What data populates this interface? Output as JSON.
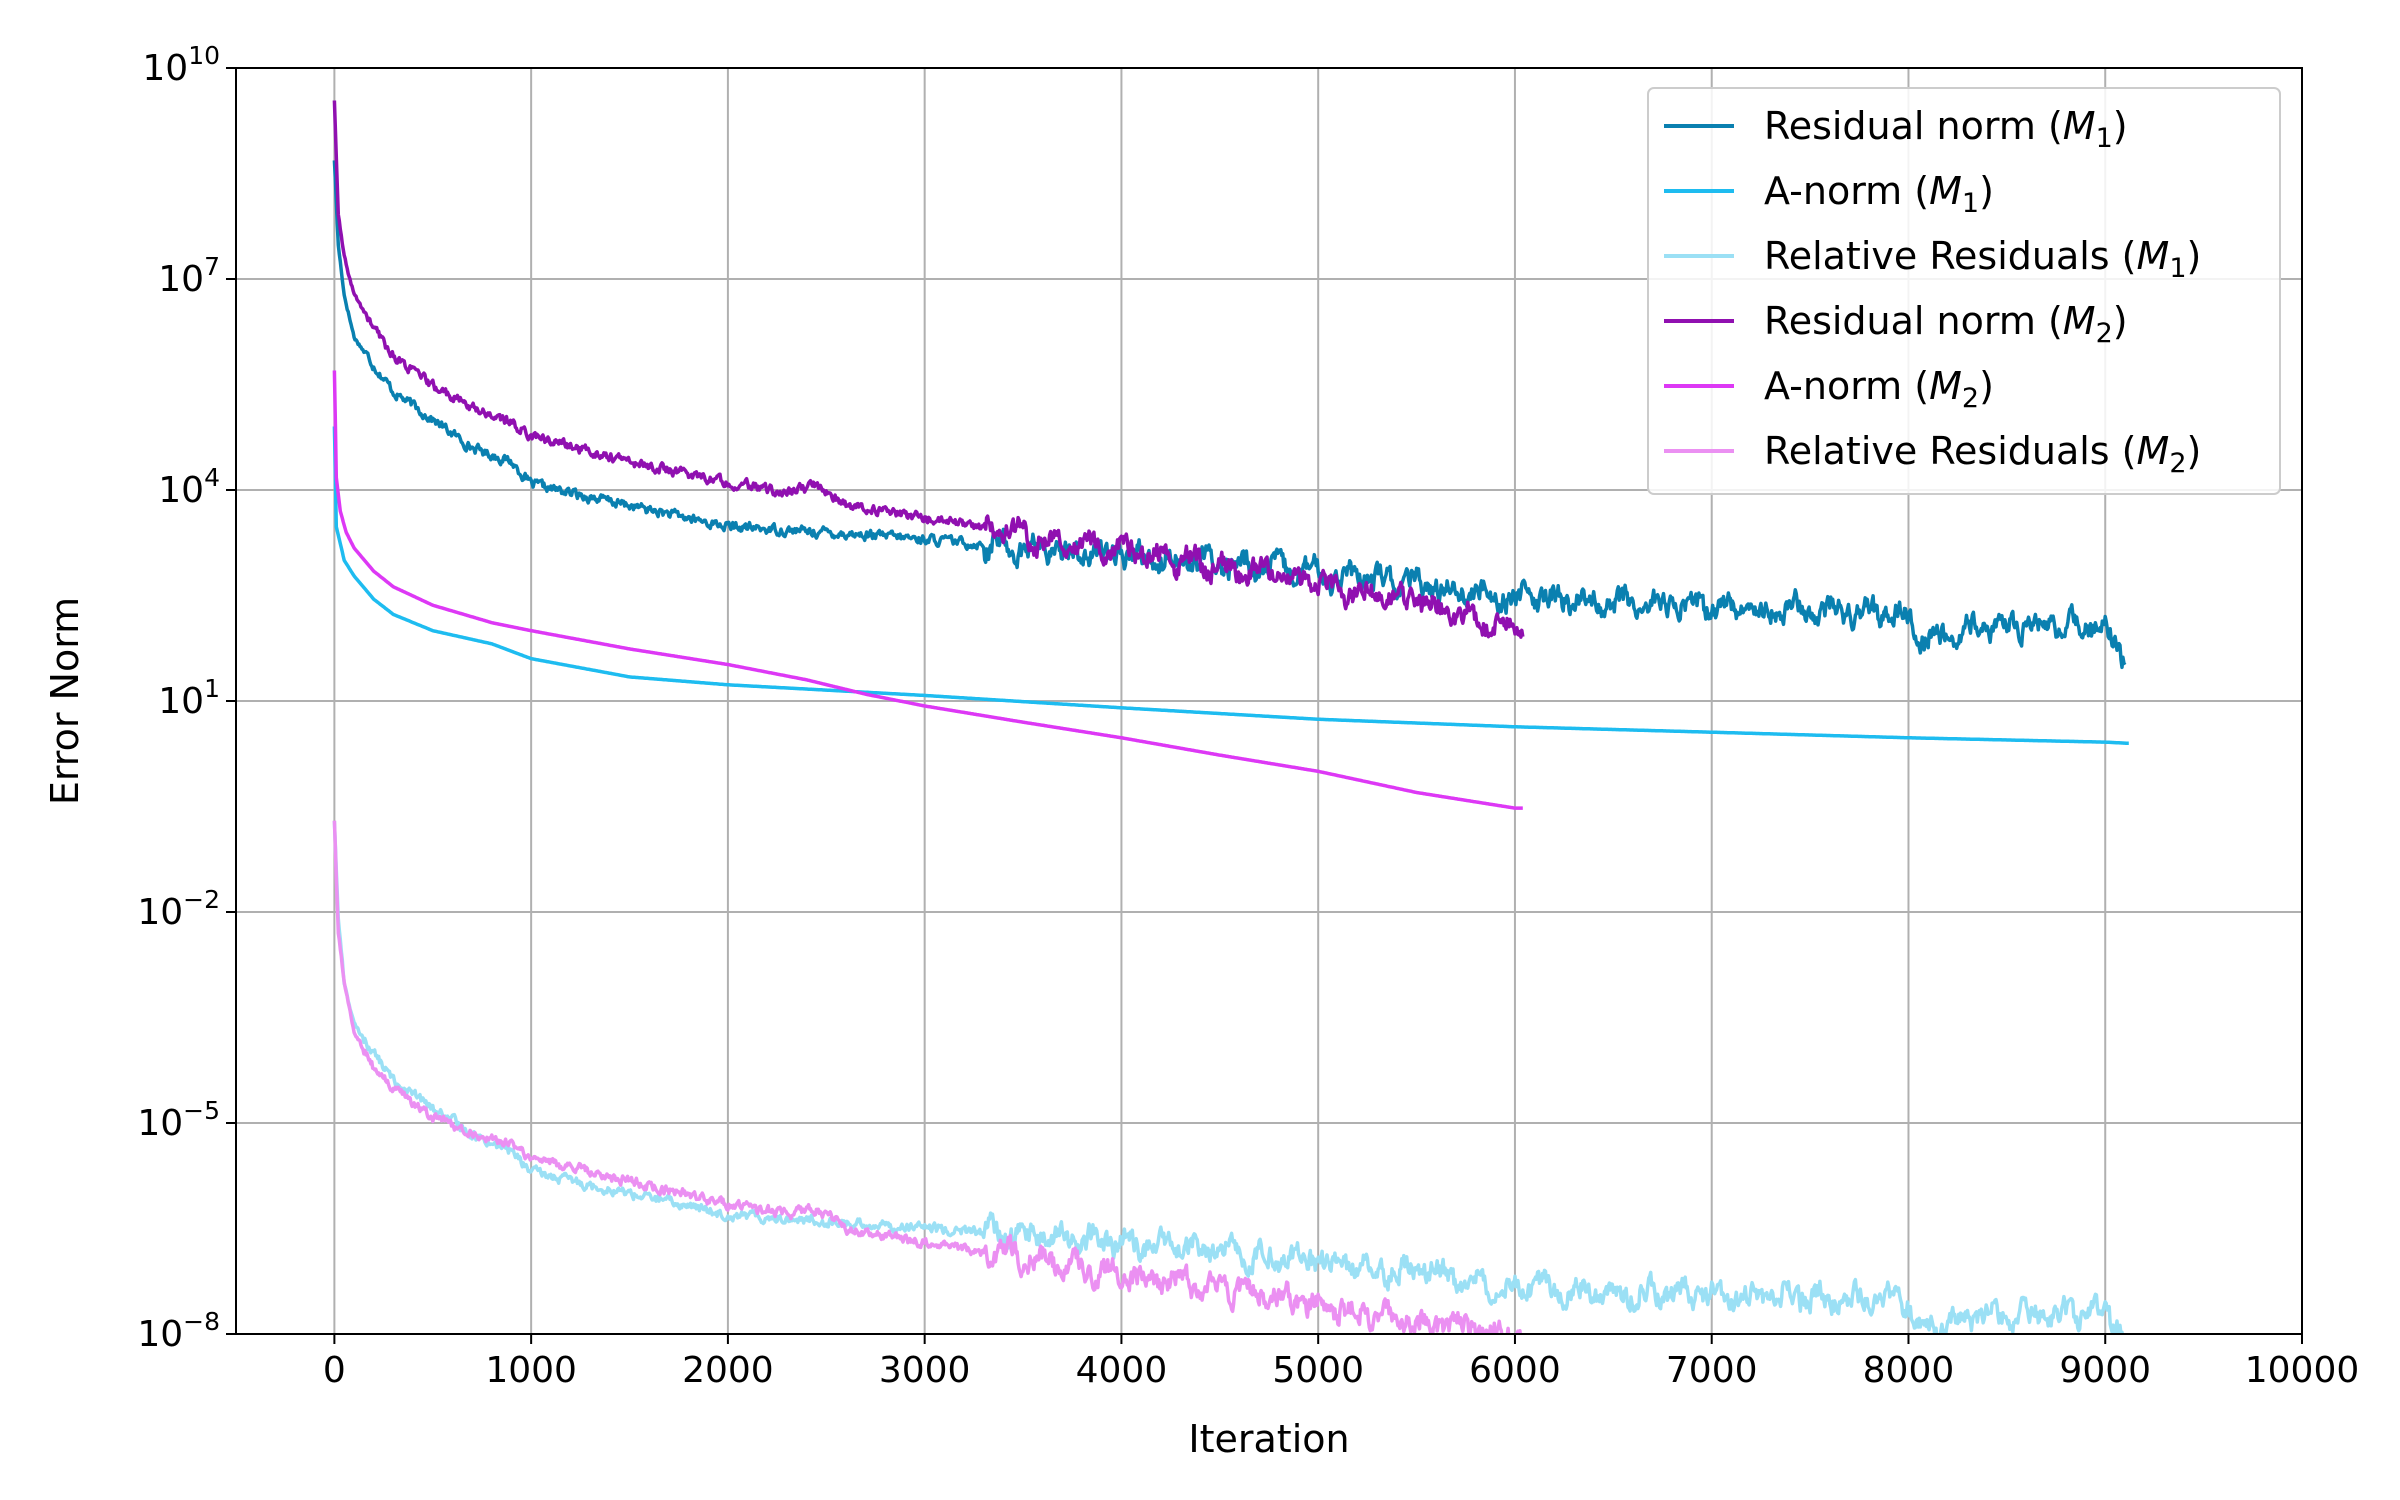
{
  "chart_data": {
    "type": "line",
    "title": "",
    "xlabel": "Iteration",
    "ylabel": "Error Norm",
    "xlim": [
      -500,
      10000
    ],
    "ylim": [
      1e-08,
      10000000000.0
    ],
    "yscale": "log",
    "grid": true,
    "legend_position": "top-right",
    "x_ticks": [
      "0",
      "1000",
      "2000",
      "3000",
      "4000",
      "5000",
      "6000",
      "7000",
      "8000",
      "9000",
      "10000"
    ],
    "y_ticks": [
      {
        "base": "10",
        "exp": "10"
      },
      {
        "base": "10",
        "exp": "7"
      },
      {
        "base": "10",
        "exp": "4"
      },
      {
        "base": "10",
        "exp": "1"
      },
      {
        "base": "10",
        "exp": "−2"
      },
      {
        "base": "10",
        "exp": "−5"
      },
      {
        "base": "10",
        "exp": "−8"
      }
    ],
    "series": [
      {
        "name": "Residual norm (M₁)",
        "label_main": "Residual norm (",
        "label_var": "M",
        "label_sub": "1",
        "label_end": ")",
        "color": "#0a80b0",
        "noisy": true,
        "x": [
          0,
          20,
          50,
          100,
          200,
          300,
          500,
          700,
          900,
          1000,
          1500,
          2000,
          2500,
          3000,
          3500,
          4000,
          4500,
          5000,
          5500,
          6000,
          6500,
          7000,
          7500,
          8000,
          8050,
          8500,
          9000,
          9100
        ],
        "y": [
          500000000.0,
          30000000.0,
          6000000.0,
          1500000.0,
          600000.0,
          250000.0,
          100000.0,
          40000.0,
          25000.0,
          12000.0,
          6000.0,
          3000.0,
          2500.0,
          2000.0,
          1500.0,
          1200.0,
          900,
          650,
          450,
          300,
          250,
          220,
          200,
          180,
          70,
          120,
          110,
          40
        ]
      },
      {
        "name": "A-norm (M₁)",
        "label_main": "A-norm (",
        "label_var": "M",
        "label_sub": "1",
        "label_end": ")",
        "color": "#1ebcf0",
        "noisy": false,
        "x": [
          0,
          10,
          50,
          100,
          200,
          300,
          500,
          800,
          1000,
          1500,
          2000,
          3000,
          4000,
          5000,
          6000,
          7000,
          8000,
          9000,
          9120
        ],
        "y": [
          80000.0,
          3000.0,
          1000.0,
          600,
          280,
          170,
          100,
          65,
          40,
          22,
          17,
          12,
          8,
          5.5,
          4.3,
          3.6,
          3.0,
          2.6,
          2.5
        ]
      },
      {
        "name": "Relative Residuals (M₁)",
        "label_main": "Relative Residuals (",
        "label_var": "M",
        "label_sub": "1",
        "label_end": ")",
        "color": "#9be0f5",
        "noisy": true,
        "x": [
          0,
          20,
          50,
          100,
          200,
          300,
          500,
          700,
          900,
          1000,
          1500,
          2000,
          2500,
          3000,
          3500,
          4000,
          4500,
          5000,
          5500,
          6000,
          6500,
          7000,
          7500,
          8000,
          8050,
          8500,
          9000,
          9100
        ],
        "y": [
          0.2,
          0.008,
          0.001,
          0.00025,
          0.0001,
          4e-05,
          1.6e-05,
          7e-06,
          4e-06,
          2e-06,
          1e-06,
          5e-07,
          4e-07,
          3.2e-07,
          2.5e-07,
          2e-07,
          1.5e-07,
          1.1e-07,
          7.5e-08,
          5e-08,
          4e-08,
          3.6e-08,
          3.2e-08,
          3e-08,
          1.2e-08,
          2e-08,
          1.8e-08,
          1e-08
        ]
      },
      {
        "name": "Residual norm (M₂)",
        "label_main": "Residual norm (",
        "label_var": "M",
        "label_sub": "2",
        "label_end": ")",
        "color": "#9010b0",
        "noisy": true,
        "x": [
          0,
          20,
          50,
          100,
          200,
          300,
          500,
          700,
          900,
          1000,
          1500,
          2000,
          2300,
          2450,
          2600,
          3000,
          3500,
          4000,
          4500,
          5000,
          5500,
          6000,
          6040
        ],
        "y": [
          3500000000.0,
          80000000.0,
          20000000.0,
          6000000.0,
          2000000.0,
          800000.0,
          300000.0,
          150000.0,
          90000.0,
          60000.0,
          25000.0,
          13000.0,
          9000.0,
          12000.0,
          6000.0,
          4000.0,
          2400.0,
          1400.0,
          800,
          450,
          250,
          110,
          100
        ]
      },
      {
        "name": "A-norm (M₂)",
        "label_main": "A-norm (",
        "label_var": "M",
        "label_sub": "2",
        "label_end": ")",
        "color": "#dd38f5",
        "noisy": false,
        "x": [
          0,
          10,
          30,
          60,
          100,
          200,
          300,
          500,
          800,
          1000,
          1500,
          2000,
          2400,
          2700,
          3000,
          3500,
          4000,
          4500,
          5000,
          5500,
          6000,
          6040
        ],
        "y": [
          500000.0,
          15000.0,
          5000.0,
          2500.0,
          1500.0,
          700,
          420,
          230,
          130,
          100,
          55,
          33,
          20,
          12.5,
          8.5,
          5,
          3,
          1.7,
          1.0,
          0.5,
          0.3,
          0.3
        ]
      },
      {
        "name": "Relative Residuals (M₂)",
        "label_main": "Relative Residuals (",
        "label_var": "M",
        "label_sub": "2",
        "label_end": ")",
        "color": "#eb90f2",
        "noisy": true,
        "x": [
          0,
          20,
          50,
          100,
          200,
          300,
          500,
          700,
          900,
          1000,
          1500,
          2000,
          2300,
          2450,
          2600,
          3000,
          3500,
          4000,
          4500,
          5000,
          5500,
          6000,
          6040
        ],
        "y": [
          0.2,
          0.005,
          0.001,
          0.0002,
          6e-05,
          3e-05,
          1.2e-05,
          7e-06,
          5e-06,
          3.2e-06,
          1.5e-06,
          7e-07,
          5e-07,
          6e-07,
          3.2e-07,
          2e-07,
          1.2e-07,
          7e-08,
          4.5e-08,
          2.5e-08,
          1.6e-08,
          1e-08,
          9e-09
        ]
      }
    ]
  }
}
